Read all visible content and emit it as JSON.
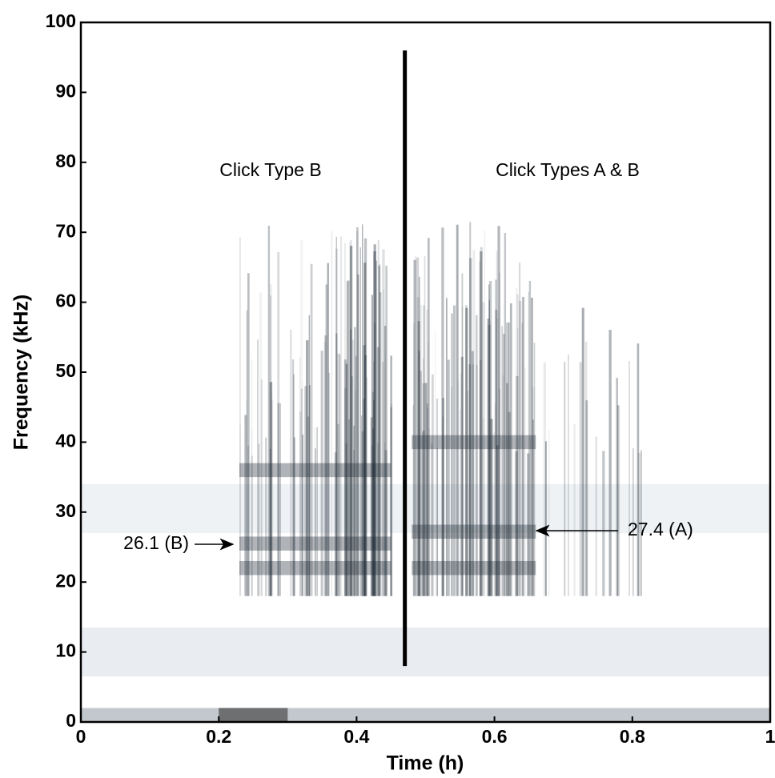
{
  "chart_data": {
    "type": "spectrogram",
    "xlabel": "Time (h)",
    "ylabel": "Frequency (kHz)",
    "xlim": [
      0,
      1
    ],
    "ylim": [
      0,
      100
    ],
    "xticks": [
      0,
      0.2,
      0.4,
      0.6,
      0.8,
      1
    ],
    "yticks": [
      0,
      10,
      20,
      30,
      40,
      50,
      60,
      70,
      80,
      90,
      100
    ],
    "annotations": [
      "Click Type B",
      "Click Types A & B",
      "26.1 (B)",
      "27.4 (A)"
    ]
  }
}
